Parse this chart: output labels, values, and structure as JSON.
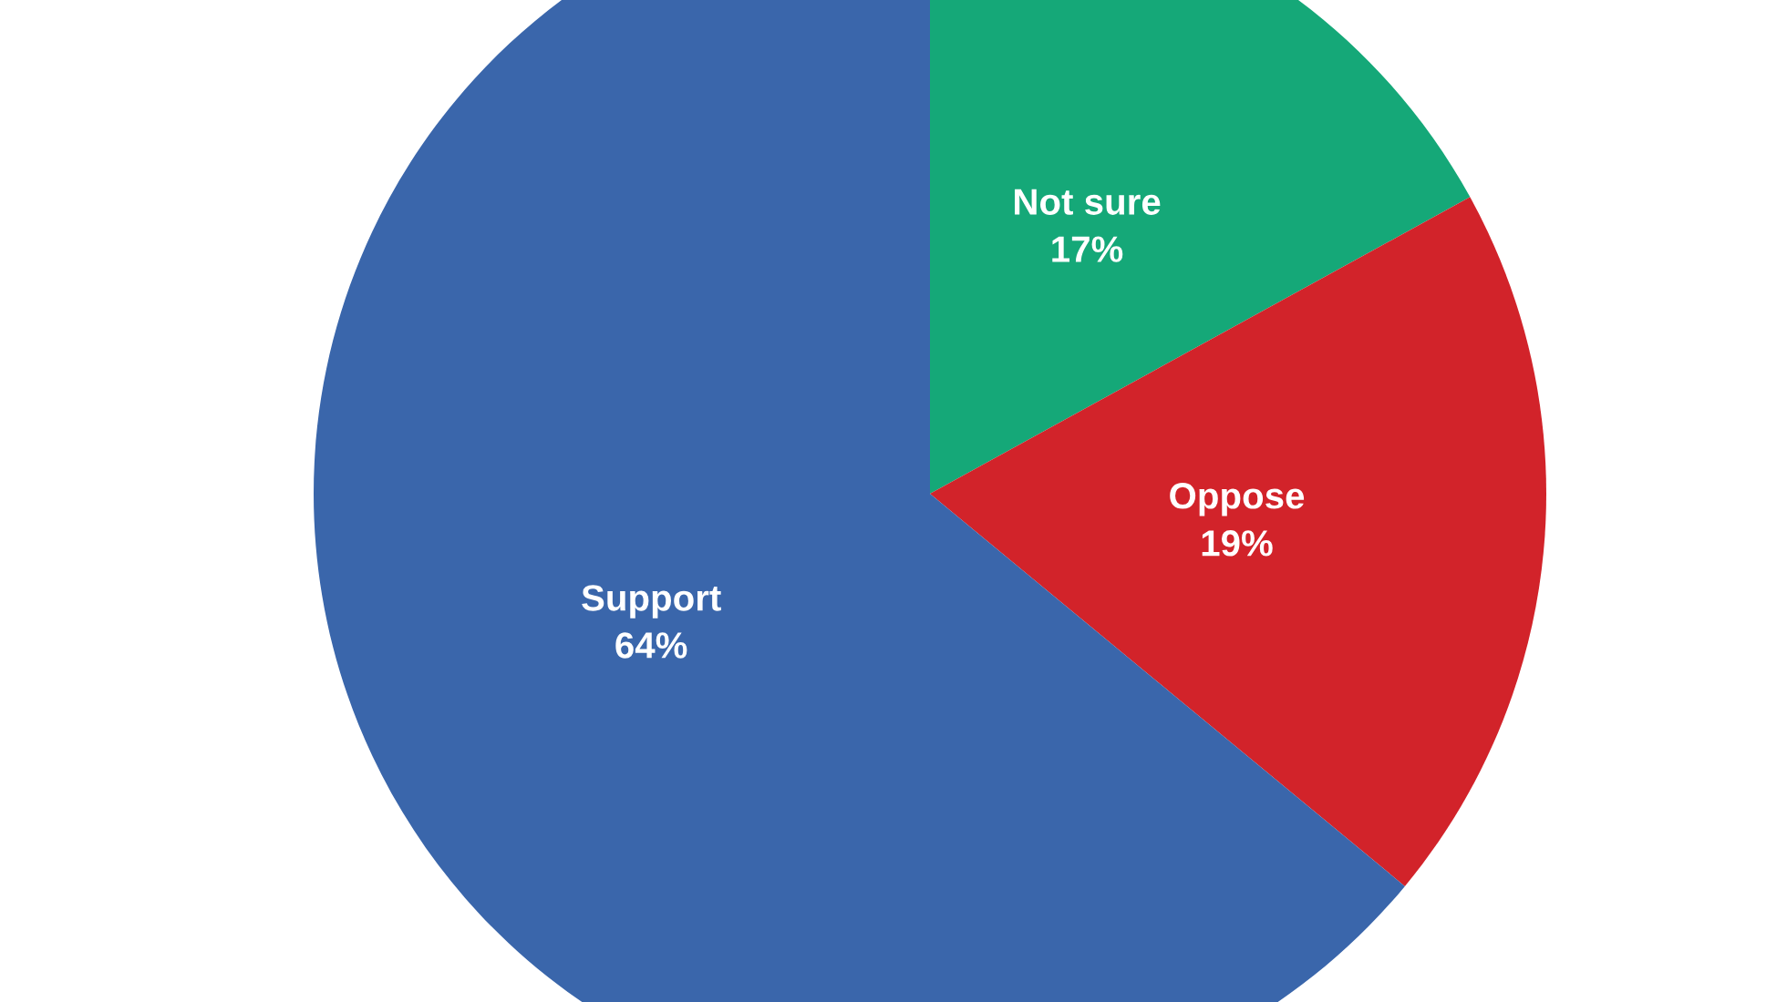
{
  "chart_data": {
    "type": "pie",
    "categories": [
      "Not sure",
      "Oppose",
      "Support"
    ],
    "values": [
      17,
      19,
      64
    ],
    "value_labels": [
      "17%",
      "19%",
      "64%"
    ],
    "colors": [
      "#15a878",
      "#d2232a",
      "#3a66ab"
    ]
  }
}
